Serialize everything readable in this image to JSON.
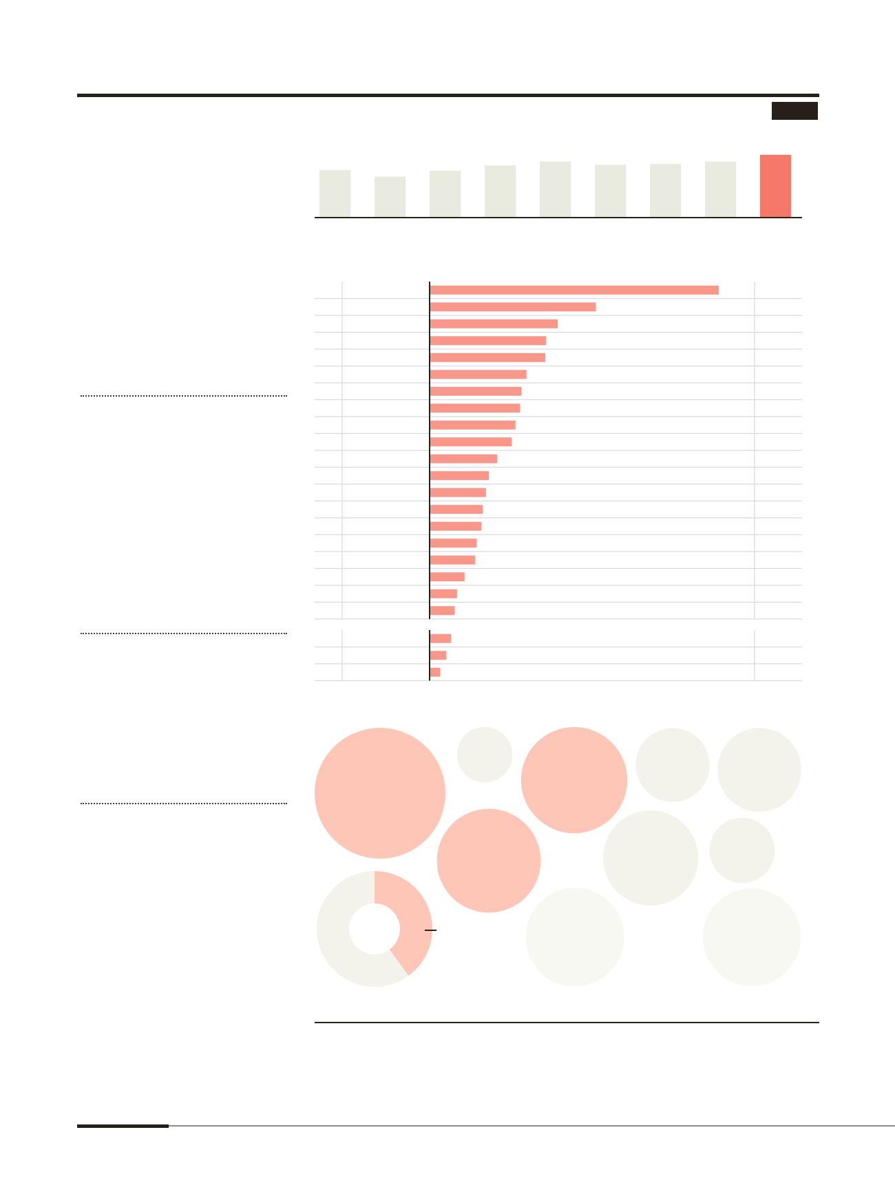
{
  "colors": {
    "ink": "#27201a",
    "bar_muted": "#e9ebe0",
    "bar_highlight": "#f57868",
    "hbar": "#f8978a",
    "bubble_hot": "#fdc6b6",
    "bubble_mid": "#f3f3eb",
    "bubble_light": "#f8f8f2",
    "grid": "#d9d9d9"
  },
  "chart_data": [
    {
      "type": "bar",
      "categories": [
        "",
        "",
        "",
        "",
        "",
        "",
        "",
        "",
        ""
      ],
      "values": [
        72,
        62,
        71,
        79,
        85,
        80,
        81,
        85,
        95
      ],
      "highlight_index": 8,
      "ylim": [
        0,
        100
      ]
    },
    {
      "type": "bar",
      "orientation": "horizontal",
      "groups": [
        {
          "values": [
            100,
            57.5,
            44.3,
            40.3,
            40.0,
            33.5,
            31.8,
            31.3,
            29.7,
            28.4,
            23.4,
            20.5,
            19.5,
            18.4,
            17.9,
            16.3,
            15.8,
            12.1,
            9.5,
            8.7
          ]
        },
        {
          "values": [
            7.4,
            5.8,
            3.7
          ]
        }
      ],
      "xlim": [
        -30,
        130
      ],
      "grid": true
    },
    {
      "type": "bubble",
      "circles": [
        {
          "value": 100,
          "tone": "hot"
        },
        {
          "value": 18,
          "tone": "mid"
        },
        {
          "value": 66,
          "tone": "hot"
        },
        {
          "value": 32,
          "tone": "mid"
        },
        {
          "value": 41,
          "tone": "mid"
        },
        {
          "value": 63,
          "tone": "hot"
        },
        {
          "value": 53,
          "tone": "mid"
        },
        {
          "value": 25,
          "tone": "mid"
        },
        {
          "value": 57,
          "tone": "light"
        },
        {
          "value": 56,
          "tone": "light"
        }
      ]
    },
    {
      "type": "pie",
      "donut": true,
      "slices": [
        {
          "value": 40,
          "tone": "hot"
        },
        {
          "value": 60,
          "tone": "mid"
        }
      ]
    }
  ]
}
